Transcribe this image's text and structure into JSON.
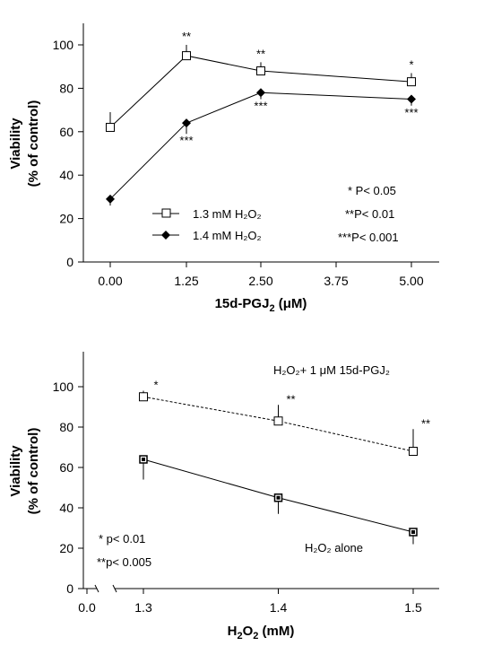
{
  "chart_data": [
    {
      "type": "line",
      "xlabel": "15d-PGJ",
      "xlabel_sub": "2",
      "xlabel_unit": " (μM)",
      "ylabel_line1": "Viability",
      "ylabel_line2": "(% of control)",
      "ylim": [
        0,
        110
      ],
      "yticks": [
        0,
        20,
        40,
        60,
        80,
        100
      ],
      "categories": [
        "0.00",
        "1.25",
        "2.50",
        "3.75",
        "5.00"
      ],
      "series": [
        {
          "name": "1.3 mM H₂O₂",
          "marker": "open-square",
          "x": [
            "0.00",
            "1.25",
            "2.50",
            "5.00"
          ],
          "values": [
            62,
            95,
            88,
            83
          ],
          "err": [
            7,
            5,
            4,
            4
          ],
          "significance": [
            "",
            "**",
            "**",
            "*"
          ]
        },
        {
          "name": "1.4 mM H₂O₂",
          "marker": "filled-diamond",
          "x": [
            "0.00",
            "1.25",
            "2.50",
            "5.00"
          ],
          "values": [
            29,
            64,
            78,
            75
          ],
          "err": [
            3,
            5,
            3,
            3
          ],
          "significance": [
            "",
            "***",
            "***",
            "***"
          ]
        }
      ],
      "notes": [
        "* P< 0.05",
        "**P< 0.01",
        "***P< 0.001"
      ]
    },
    {
      "type": "line",
      "xlabel": "H",
      "xlabel_sub1": "2",
      "xlabel_mid": "O",
      "xlabel_sub2": "2",
      "xlabel_unit": " (mM)",
      "ylabel_line1": "Viability",
      "ylabel_line2": "(% of control)",
      "ylim": [
        0,
        115
      ],
      "yticks": [
        0,
        20,
        40,
        60,
        80,
        100
      ],
      "xticks": [
        "0.0",
        "1.3",
        "1.4",
        "1.5"
      ],
      "series": [
        {
          "name": "H₂O₂+ 1 μM 15d-PGJ₂",
          "marker": "open-square",
          "style": "dashed",
          "x": [
            1.3,
            1.4,
            1.5
          ],
          "values": [
            95,
            83,
            68
          ],
          "err": [
            3,
            8,
            11
          ],
          "significance": [
            "*",
            "**",
            "**"
          ]
        },
        {
          "name": "H₂O₂ alone",
          "marker": "filled-square",
          "style": "solid",
          "x": [
            1.3,
            1.4,
            1.5
          ],
          "values": [
            64,
            45,
            28
          ],
          "err": [
            10,
            8,
            6
          ],
          "significance": [
            "",
            "",
            ""
          ]
        }
      ],
      "notes": [
        "* p< 0.01",
        "**p< 0.005"
      ]
    }
  ]
}
